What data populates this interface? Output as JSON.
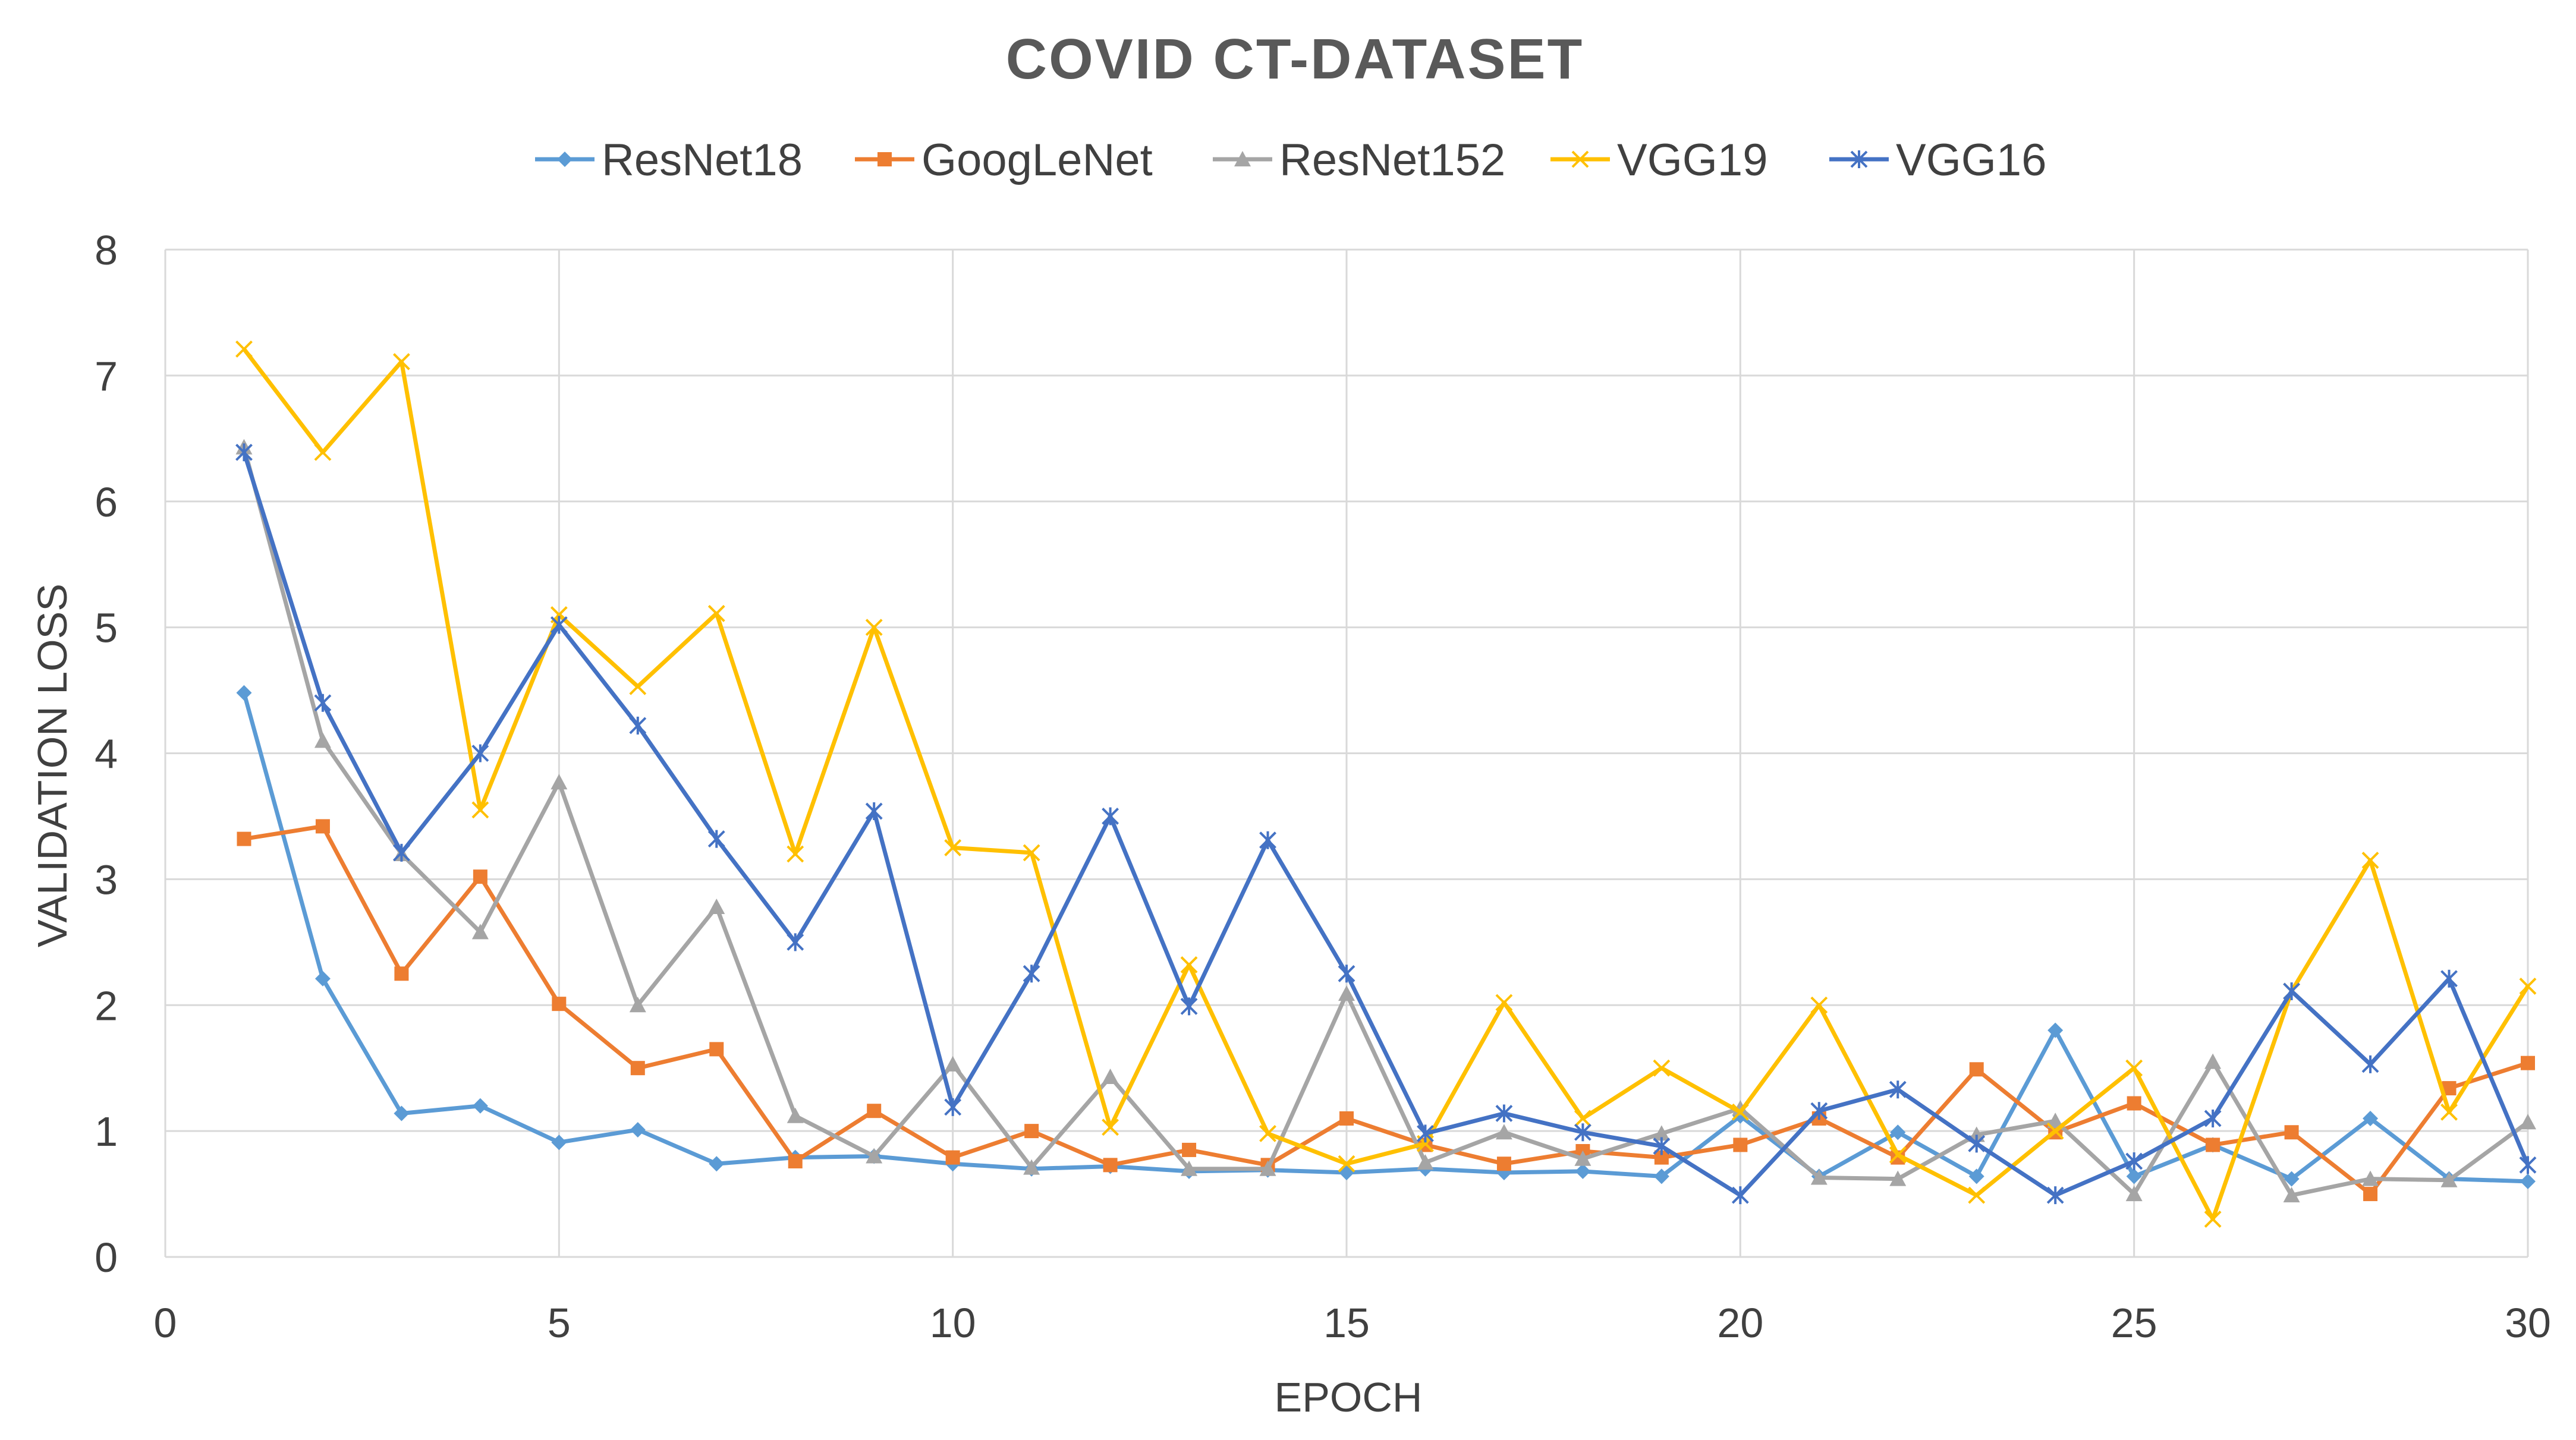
{
  "chart_data": {
    "type": "line",
    "title": "COVID CT-DATASET",
    "xlabel": "EPOCH",
    "ylabel": "VALIDATION LOSS",
    "xlim": [
      0,
      30
    ],
    "ylim": [
      0,
      8
    ],
    "xticks": [
      0,
      5,
      10,
      15,
      20,
      25,
      30
    ],
    "yticks": [
      0,
      1,
      2,
      3,
      4,
      5,
      6,
      7,
      8
    ],
    "grid": true,
    "legend_position": "top",
    "x": [
      1,
      2,
      3,
      4,
      5,
      6,
      7,
      8,
      9,
      10,
      11,
      12,
      13,
      14,
      15,
      16,
      17,
      18,
      19,
      20,
      21,
      22,
      23,
      24,
      25,
      26,
      27,
      28,
      29,
      30
    ],
    "series": [
      {
        "name": "ResNet18",
        "color": "#5B9BD5",
        "marker": "diamond",
        "values": [
          4.48,
          2.21,
          1.14,
          1.2,
          0.91,
          1.01,
          0.74,
          0.79,
          0.8,
          0.74,
          0.7,
          0.72,
          0.68,
          0.69,
          0.67,
          0.7,
          0.67,
          0.68,
          0.64,
          1.12,
          0.64,
          0.99,
          0.64,
          1.8,
          0.64,
          0.89,
          0.62,
          1.1,
          0.62,
          0.6
        ]
      },
      {
        "name": "GoogLeNet",
        "color": "#ED7D31",
        "marker": "square",
        "values": [
          3.32,
          3.42,
          2.25,
          3.02,
          2.01,
          1.5,
          1.65,
          0.76,
          1.16,
          0.79,
          1.0,
          0.73,
          0.85,
          0.73,
          1.1,
          0.89,
          0.74,
          0.84,
          0.79,
          0.89,
          1.1,
          0.79,
          1.49,
          0.99,
          1.22,
          0.89,
          0.99,
          0.5,
          1.34,
          1.54
        ]
      },
      {
        "name": "ResNet152",
        "color": "#A5A5A5",
        "marker": "triangle",
        "values": [
          6.43,
          4.1,
          3.2,
          2.58,
          3.77,
          2.0,
          2.78,
          1.12,
          0.8,
          1.53,
          0.71,
          1.43,
          0.7,
          0.7,
          2.09,
          0.75,
          0.99,
          0.78,
          0.98,
          1.18,
          0.63,
          0.62,
          0.97,
          1.08,
          0.5,
          1.55,
          0.49,
          0.62,
          0.61,
          1.07
        ]
      },
      {
        "name": "VGG19",
        "color": "#FFC000",
        "marker": "x",
        "values": [
          7.21,
          6.39,
          7.11,
          3.55,
          5.1,
          4.53,
          5.11,
          3.2,
          5.0,
          3.25,
          3.21,
          1.03,
          2.32,
          0.98,
          0.74,
          0.9,
          2.02,
          1.1,
          1.5,
          1.15,
          2.0,
          0.81,
          0.49,
          1.0,
          1.5,
          0.3,
          2.11,
          3.15,
          1.15,
          2.15
        ]
      },
      {
        "name": "VGG16",
        "color": "#4472C4",
        "marker": "star",
        "values": [
          6.39,
          4.4,
          3.21,
          4.0,
          5.02,
          4.22,
          3.32,
          2.5,
          3.54,
          1.19,
          2.25,
          3.5,
          1.99,
          3.31,
          2.25,
          0.98,
          1.14,
          0.99,
          0.88,
          0.49,
          1.16,
          1.33,
          0.9,
          0.49,
          0.76,
          1.1,
          2.11,
          1.53,
          2.21,
          0.73
        ]
      }
    ]
  }
}
